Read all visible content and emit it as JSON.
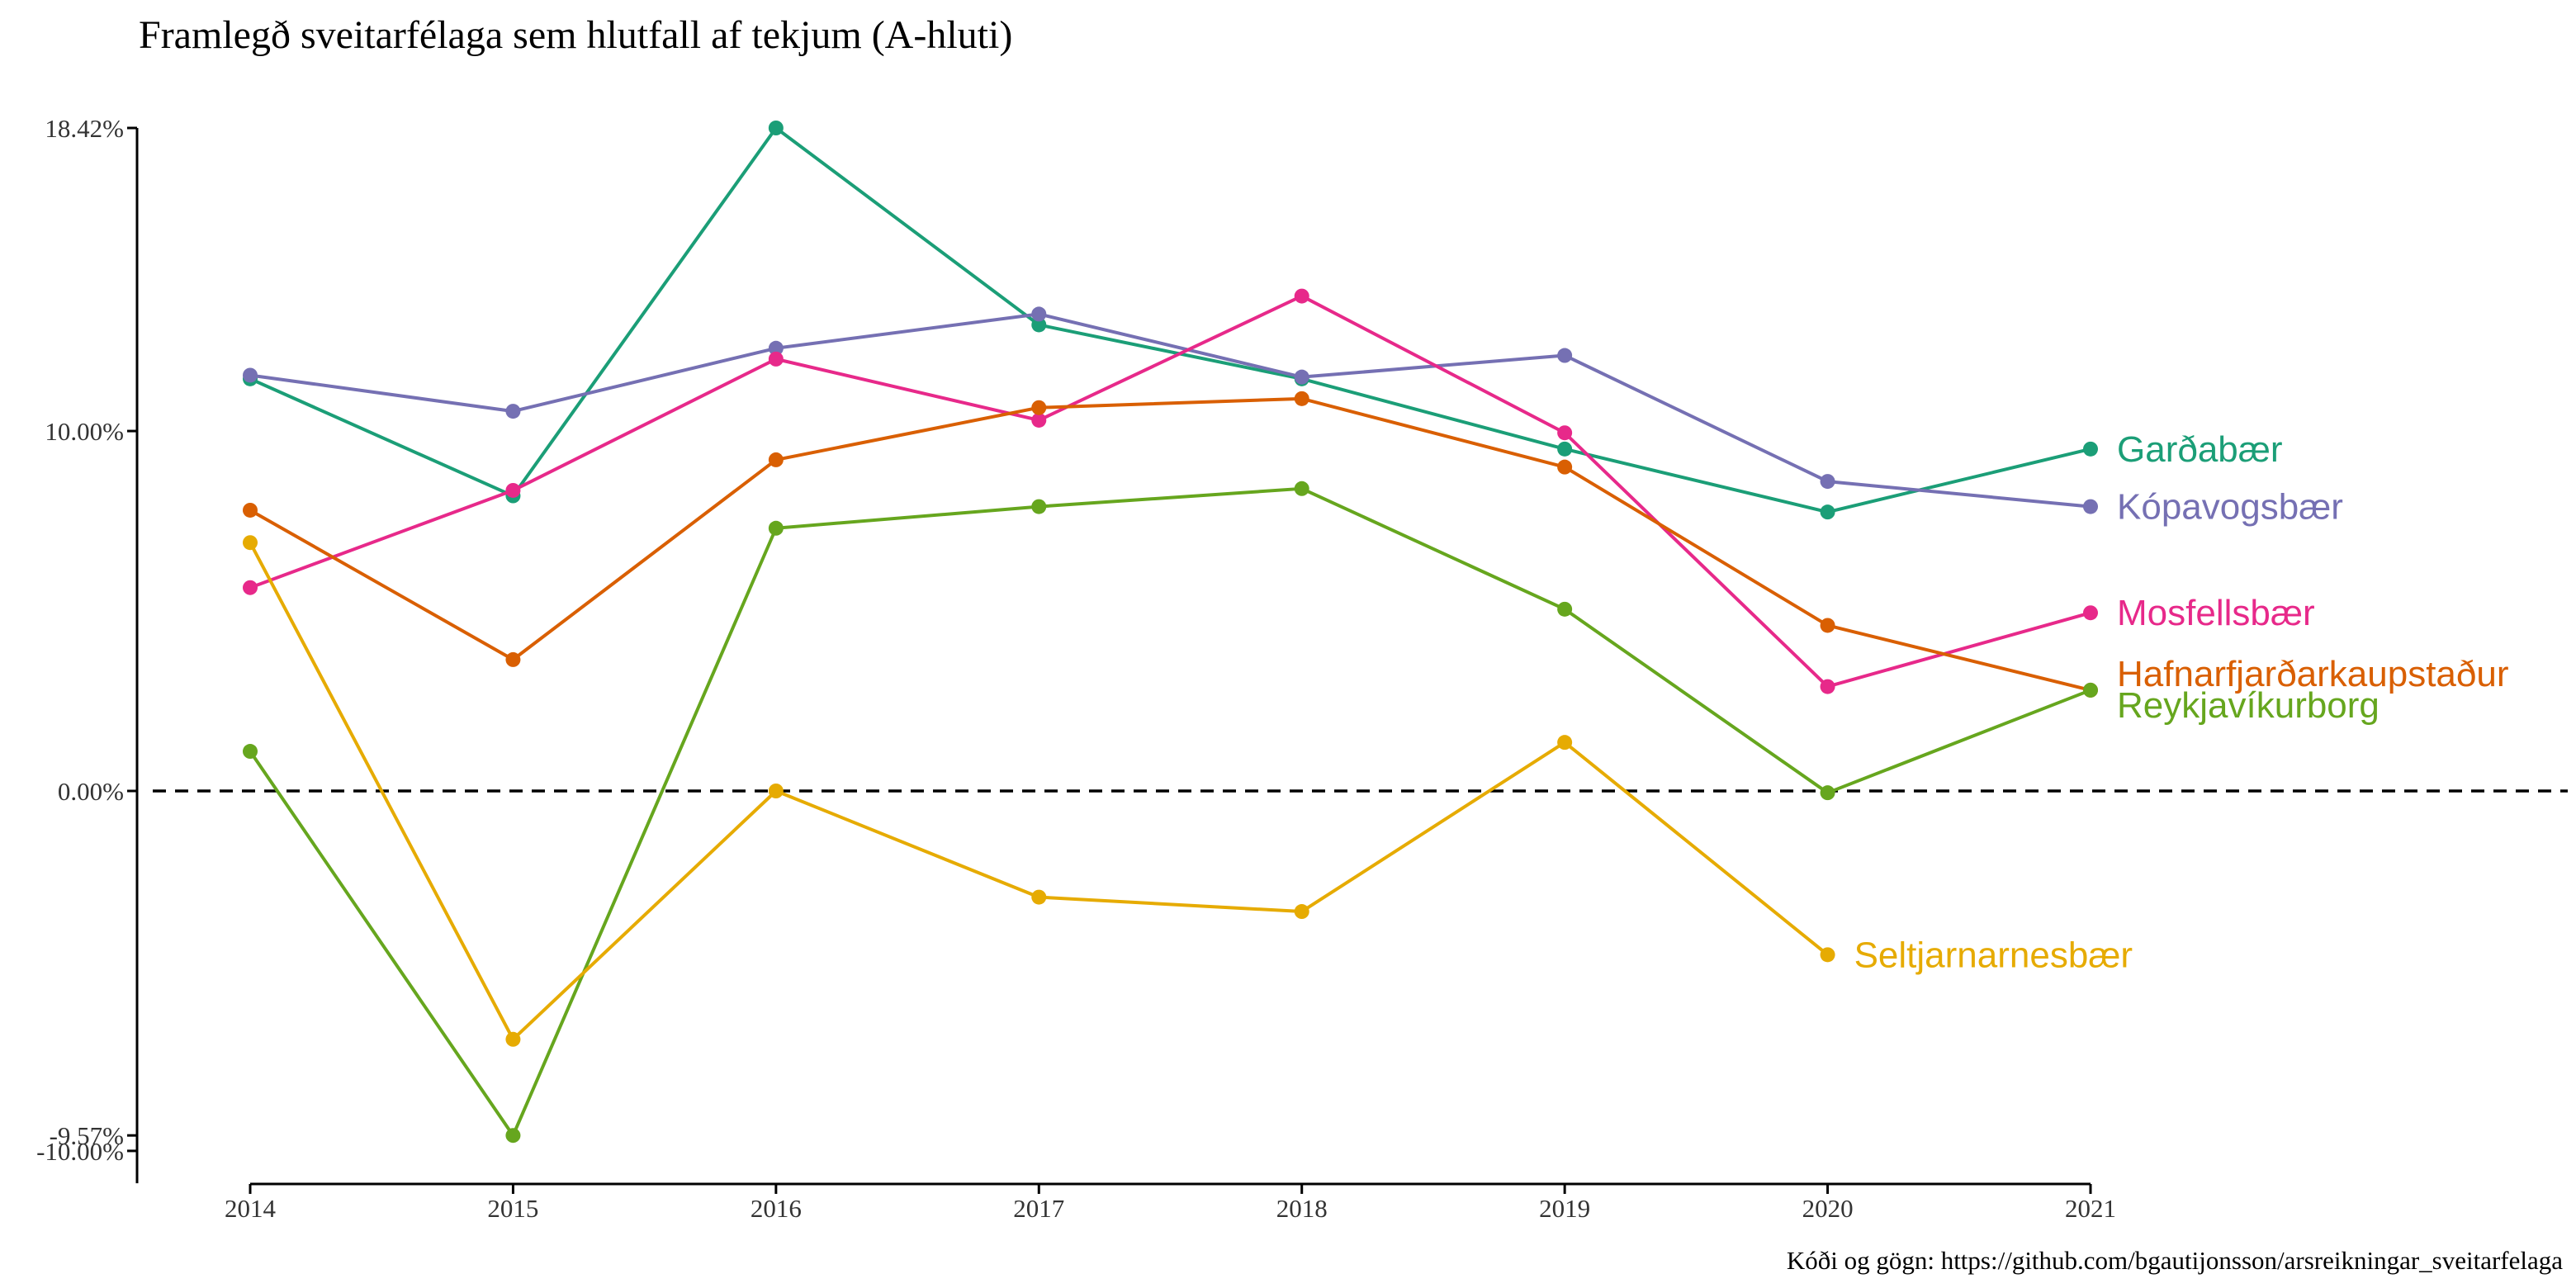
{
  "chart_data": {
    "type": "line",
    "title": "Framlegð sveitarfélaga sem hlutfall af tekjum (A-hluti)",
    "caption": "Kóði og gögn: https://github.com/bgautijonsson/arsreikningar_sveitarfelaga",
    "xlabel": "",
    "ylabel": "",
    "x": [
      2014,
      2015,
      2016,
      2017,
      2018,
      2019,
      2020,
      2021
    ],
    "x_tick_labels": [
      "2014",
      "2015",
      "2016",
      "2017",
      "2018",
      "2019",
      "2020",
      "2021"
    ],
    "y_ticks": [
      {
        "value": 18.42,
        "label": "18.42%"
      },
      {
        "value": 10.0,
        "label": "10.00%"
      },
      {
        "value": 0.0,
        "label": "0.00%"
      },
      {
        "value": -9.57,
        "label": "-9.57%"
      },
      {
        "value": -10.0,
        "label": "-10.00%"
      }
    ],
    "ylim": [
      -10.9,
      18.42
    ],
    "reference_line": {
      "y": 0,
      "style": "dashed"
    },
    "grid": false,
    "legend": "direct labels at line ends",
    "series": [
      {
        "name": "Garðabær",
        "color": "#1b9e77",
        "values": [
          11.45,
          8.2,
          18.42,
          12.95,
          11.45,
          9.5,
          7.75,
          9.5
        ]
      },
      {
        "name": "Kópavogsbær",
        "color": "#7570b3",
        "values": [
          11.55,
          10.55,
          12.3,
          13.25,
          11.5,
          12.1,
          8.6,
          7.9
        ]
      },
      {
        "name": "Mosfellsbær",
        "color": "#e7298a",
        "values": [
          5.65,
          8.35,
          12.0,
          10.3,
          13.75,
          9.95,
          2.9,
          4.95
        ]
      },
      {
        "name": "Hafnarfjarðarkaupstaður",
        "color": "#d95f02",
        "values": [
          7.8,
          3.65,
          9.2,
          10.65,
          10.9,
          9.0,
          4.6,
          2.8
        ]
      },
      {
        "name": "Reykjavíkurborg",
        "color": "#66a61e",
        "values": [
          1.1,
          -9.57,
          7.3,
          7.9,
          8.4,
          5.05,
          -0.05,
          2.8
        ]
      },
      {
        "name": "Seltjarnarnesbær",
        "color": "#e6ab02",
        "values": [
          6.9,
          -6.9,
          0.0,
          -2.95,
          -3.35,
          1.35,
          -4.55,
          null
        ]
      }
    ]
  }
}
